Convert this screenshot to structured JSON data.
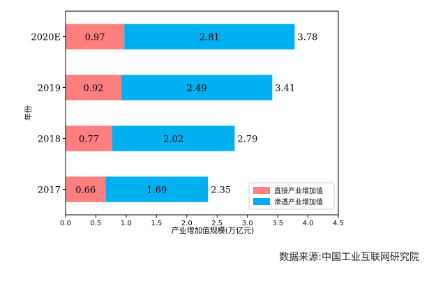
{
  "chart_data": {
    "type": "bar",
    "orientation": "horizontal",
    "stacked": true,
    "title": "",
    "xlabel": "产业增加值规模(万亿元)",
    "ylabel": "年份",
    "categories": [
      "2017",
      "2018",
      "2019",
      "2020E"
    ],
    "series": [
      {
        "name": "直接产业增加值",
        "color": "#ff7f7f",
        "values": [
          0.66,
          0.77,
          0.92,
          0.97
        ]
      },
      {
        "name": "渗透产业增加值",
        "color": "#00b0f0",
        "values": [
          1.69,
          2.02,
          2.49,
          2.81
        ]
      }
    ],
    "totals": [
      2.35,
      2.79,
      3.41,
      3.78
    ],
    "xlim": [
      0,
      4.5
    ],
    "xticks": [
      "0.0",
      "0.5",
      "1.0",
      "1.5",
      "2.0",
      "2.5",
      "3.0",
      "3.5",
      "4.0",
      "4.5"
    ],
    "grid": false,
    "legend_position": "lower-right"
  },
  "source_text": "数据来源:中国工业互联网研究院"
}
